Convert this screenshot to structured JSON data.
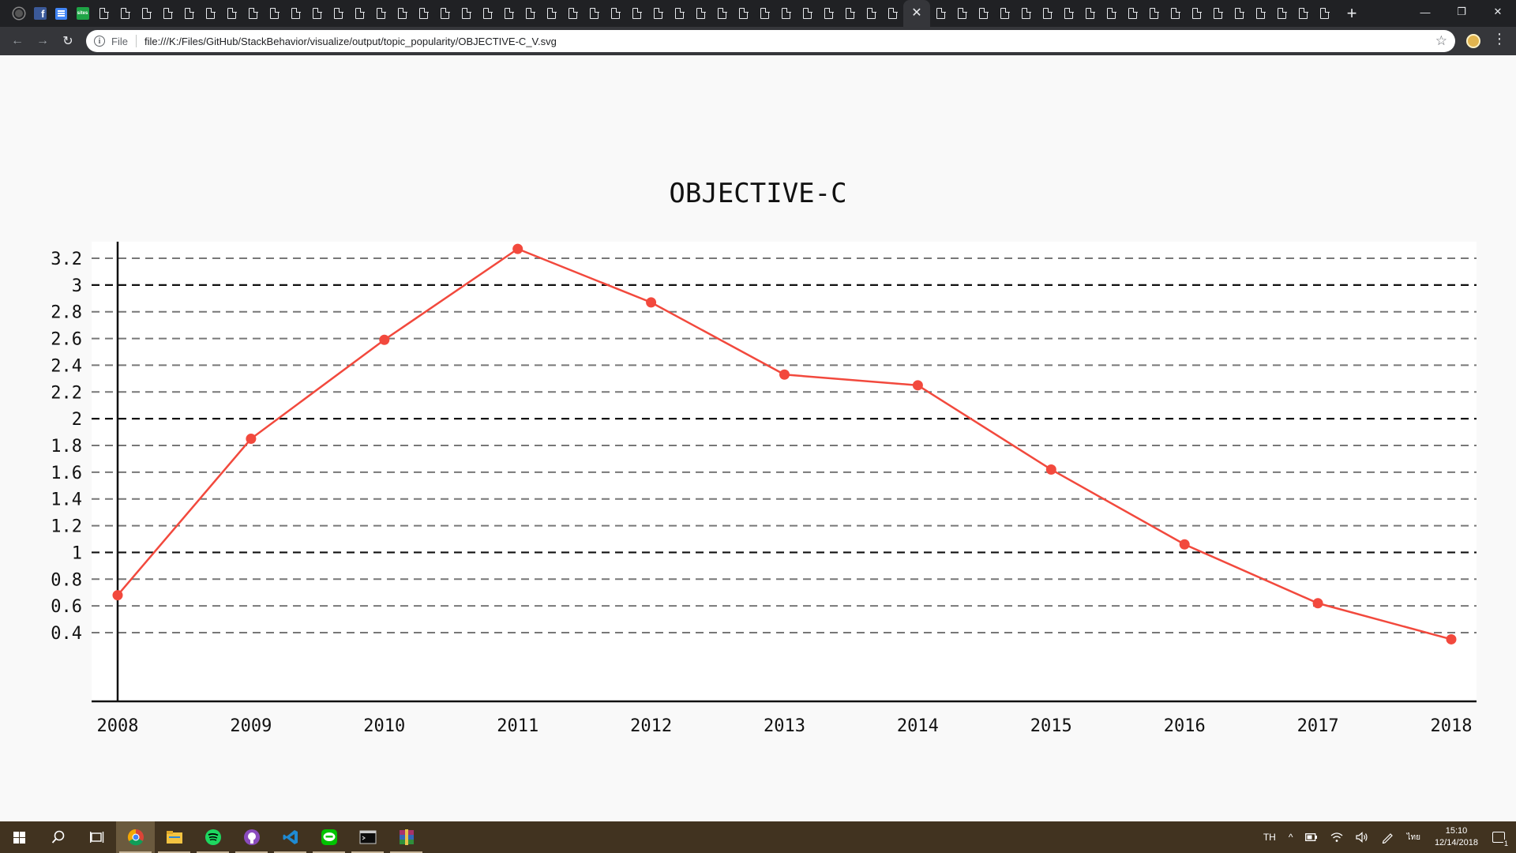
{
  "browser": {
    "tabs": {
      "favicons": [
        "github-icon",
        "facebook-icon",
        "sheets-icon",
        "green-app-icon"
      ],
      "doc_tab_count_before_active": 38,
      "doc_tab_count_after_active": 19,
      "close_glyph": "✕",
      "facebook_glyph": "f",
      "green_app_glyph": "sites"
    },
    "new_tab_glyph": "+",
    "window_controls": {
      "minimize": "—",
      "maximize": "❐",
      "close": "✕"
    },
    "nav": {
      "back": "←",
      "forward": "→",
      "reload": "↻"
    },
    "omnibox": {
      "info_glyph": "i",
      "scheme_label": "File",
      "url": "file:///K:/Files/GitHub/StackBehavior/visualize/output/topic_popularity/OBJECTIVE-C_V.svg",
      "star_glyph": "☆"
    },
    "menu_glyph": "⋮"
  },
  "chart_data": {
    "type": "line",
    "title": "OBJECTIVE-C",
    "x": [
      2008,
      2009,
      2010,
      2011,
      2012,
      2013,
      2014,
      2015,
      2016,
      2017,
      2018
    ],
    "x_tick_labels": [
      "2008",
      "2009",
      "2010",
      "2011",
      "2012",
      "2013",
      "2014",
      "2015",
      "2016",
      "2017",
      "2018"
    ],
    "series": [
      {
        "values": [
          0.68,
          1.85,
          2.59,
          3.27,
          2.87,
          2.33,
          2.25,
          1.62,
          1.06,
          0.62,
          0.35
        ],
        "color": "#f2493d"
      }
    ],
    "y_ticks": [
      0.4,
      0.6,
      0.8,
      1,
      1.2,
      1.4,
      1.6,
      1.8,
      2,
      2.2,
      2.4,
      2.6,
      2.8,
      3,
      3.2
    ],
    "y_tick_labels": [
      "0.4",
      "0.6",
      "0.8",
      "1",
      "1.2",
      "1.4",
      "1.6",
      "1.8",
      "2",
      "2.2",
      "2.4",
      "2.6",
      "2.8",
      "3",
      "3.2"
    ],
    "major_y_ticks": [
      1,
      2,
      3
    ],
    "ylim": [
      0.3,
      3.33
    ],
    "xlabel": "",
    "ylabel": "",
    "grid": true,
    "grid_style": "dashed",
    "legend": "none",
    "colors": {
      "line": "#f2493d",
      "marker": "#f2493d",
      "major_grid": "#111111",
      "minor_grid": "#777777",
      "axis": "#111111",
      "plot_bg": "#ffffff"
    }
  },
  "taskbar": {
    "apps": [
      {
        "name": "chrome-icon",
        "running": true,
        "current": true
      },
      {
        "name": "file-explorer-icon",
        "running": true
      },
      {
        "name": "spotify-icon",
        "running": true
      },
      {
        "name": "github-desktop-icon",
        "running": true
      },
      {
        "name": "vscode-icon",
        "running": true
      },
      {
        "name": "line-icon",
        "running": true
      },
      {
        "name": "terminal-icon",
        "running": true
      },
      {
        "name": "winrar-icon",
        "running": true
      }
    ],
    "tray": {
      "language": "TH",
      "chevron": "^",
      "ime": "ไทย",
      "time": "15:10",
      "date": "12/14/2018",
      "notification_count": "1"
    }
  }
}
